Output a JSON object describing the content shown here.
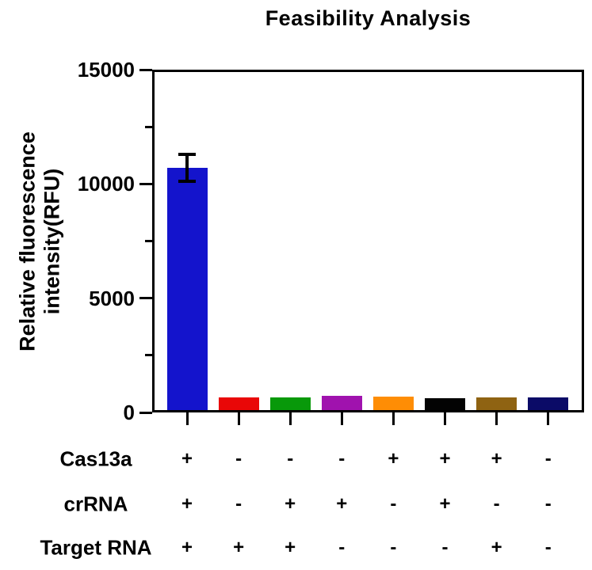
{
  "title": "Feasibility Analysis",
  "chart_data": {
    "type": "bar",
    "title": "Feasibility Analysis",
    "ylabel": "Relative fluorescence intensity(RFU)",
    "ylabel_lines": [
      "Relative fluorescence",
      "intensity(RFU)"
    ],
    "xlabel": "",
    "ylim": [
      0,
      15000
    ],
    "yticks": [
      0,
      5000,
      10000,
      15000
    ],
    "yticks_minor": [
      2500,
      7500,
      12500
    ],
    "grid": false,
    "legend": "none",
    "axis_color": "#000000",
    "bars": [
      {
        "value": 10700,
        "error": 580,
        "color": "#1414CC"
      },
      {
        "value": 650,
        "color": "#E90707"
      },
      {
        "value": 650,
        "color": "#08990A"
      },
      {
        "value": 720,
        "color": "#A012AE"
      },
      {
        "value": 680,
        "color": "#FE8D05"
      },
      {
        "value": 630,
        "color": "#030303"
      },
      {
        "value": 670,
        "color": "#8F6312"
      },
      {
        "value": 650,
        "color": "#0B0B67"
      }
    ],
    "condition_rows": [
      {
        "label": "Cas13a",
        "values": [
          "+",
          "-",
          "-",
          "-",
          "+",
          "+",
          "+",
          "-"
        ]
      },
      {
        "label": "crRNA",
        "values": [
          "+",
          "-",
          "+",
          "+",
          "-",
          "+",
          "-",
          "-"
        ]
      },
      {
        "label": "Target RNA",
        "values": [
          "+",
          "+",
          "+",
          "-",
          "-",
          "-",
          "+",
          "-"
        ]
      }
    ]
  }
}
